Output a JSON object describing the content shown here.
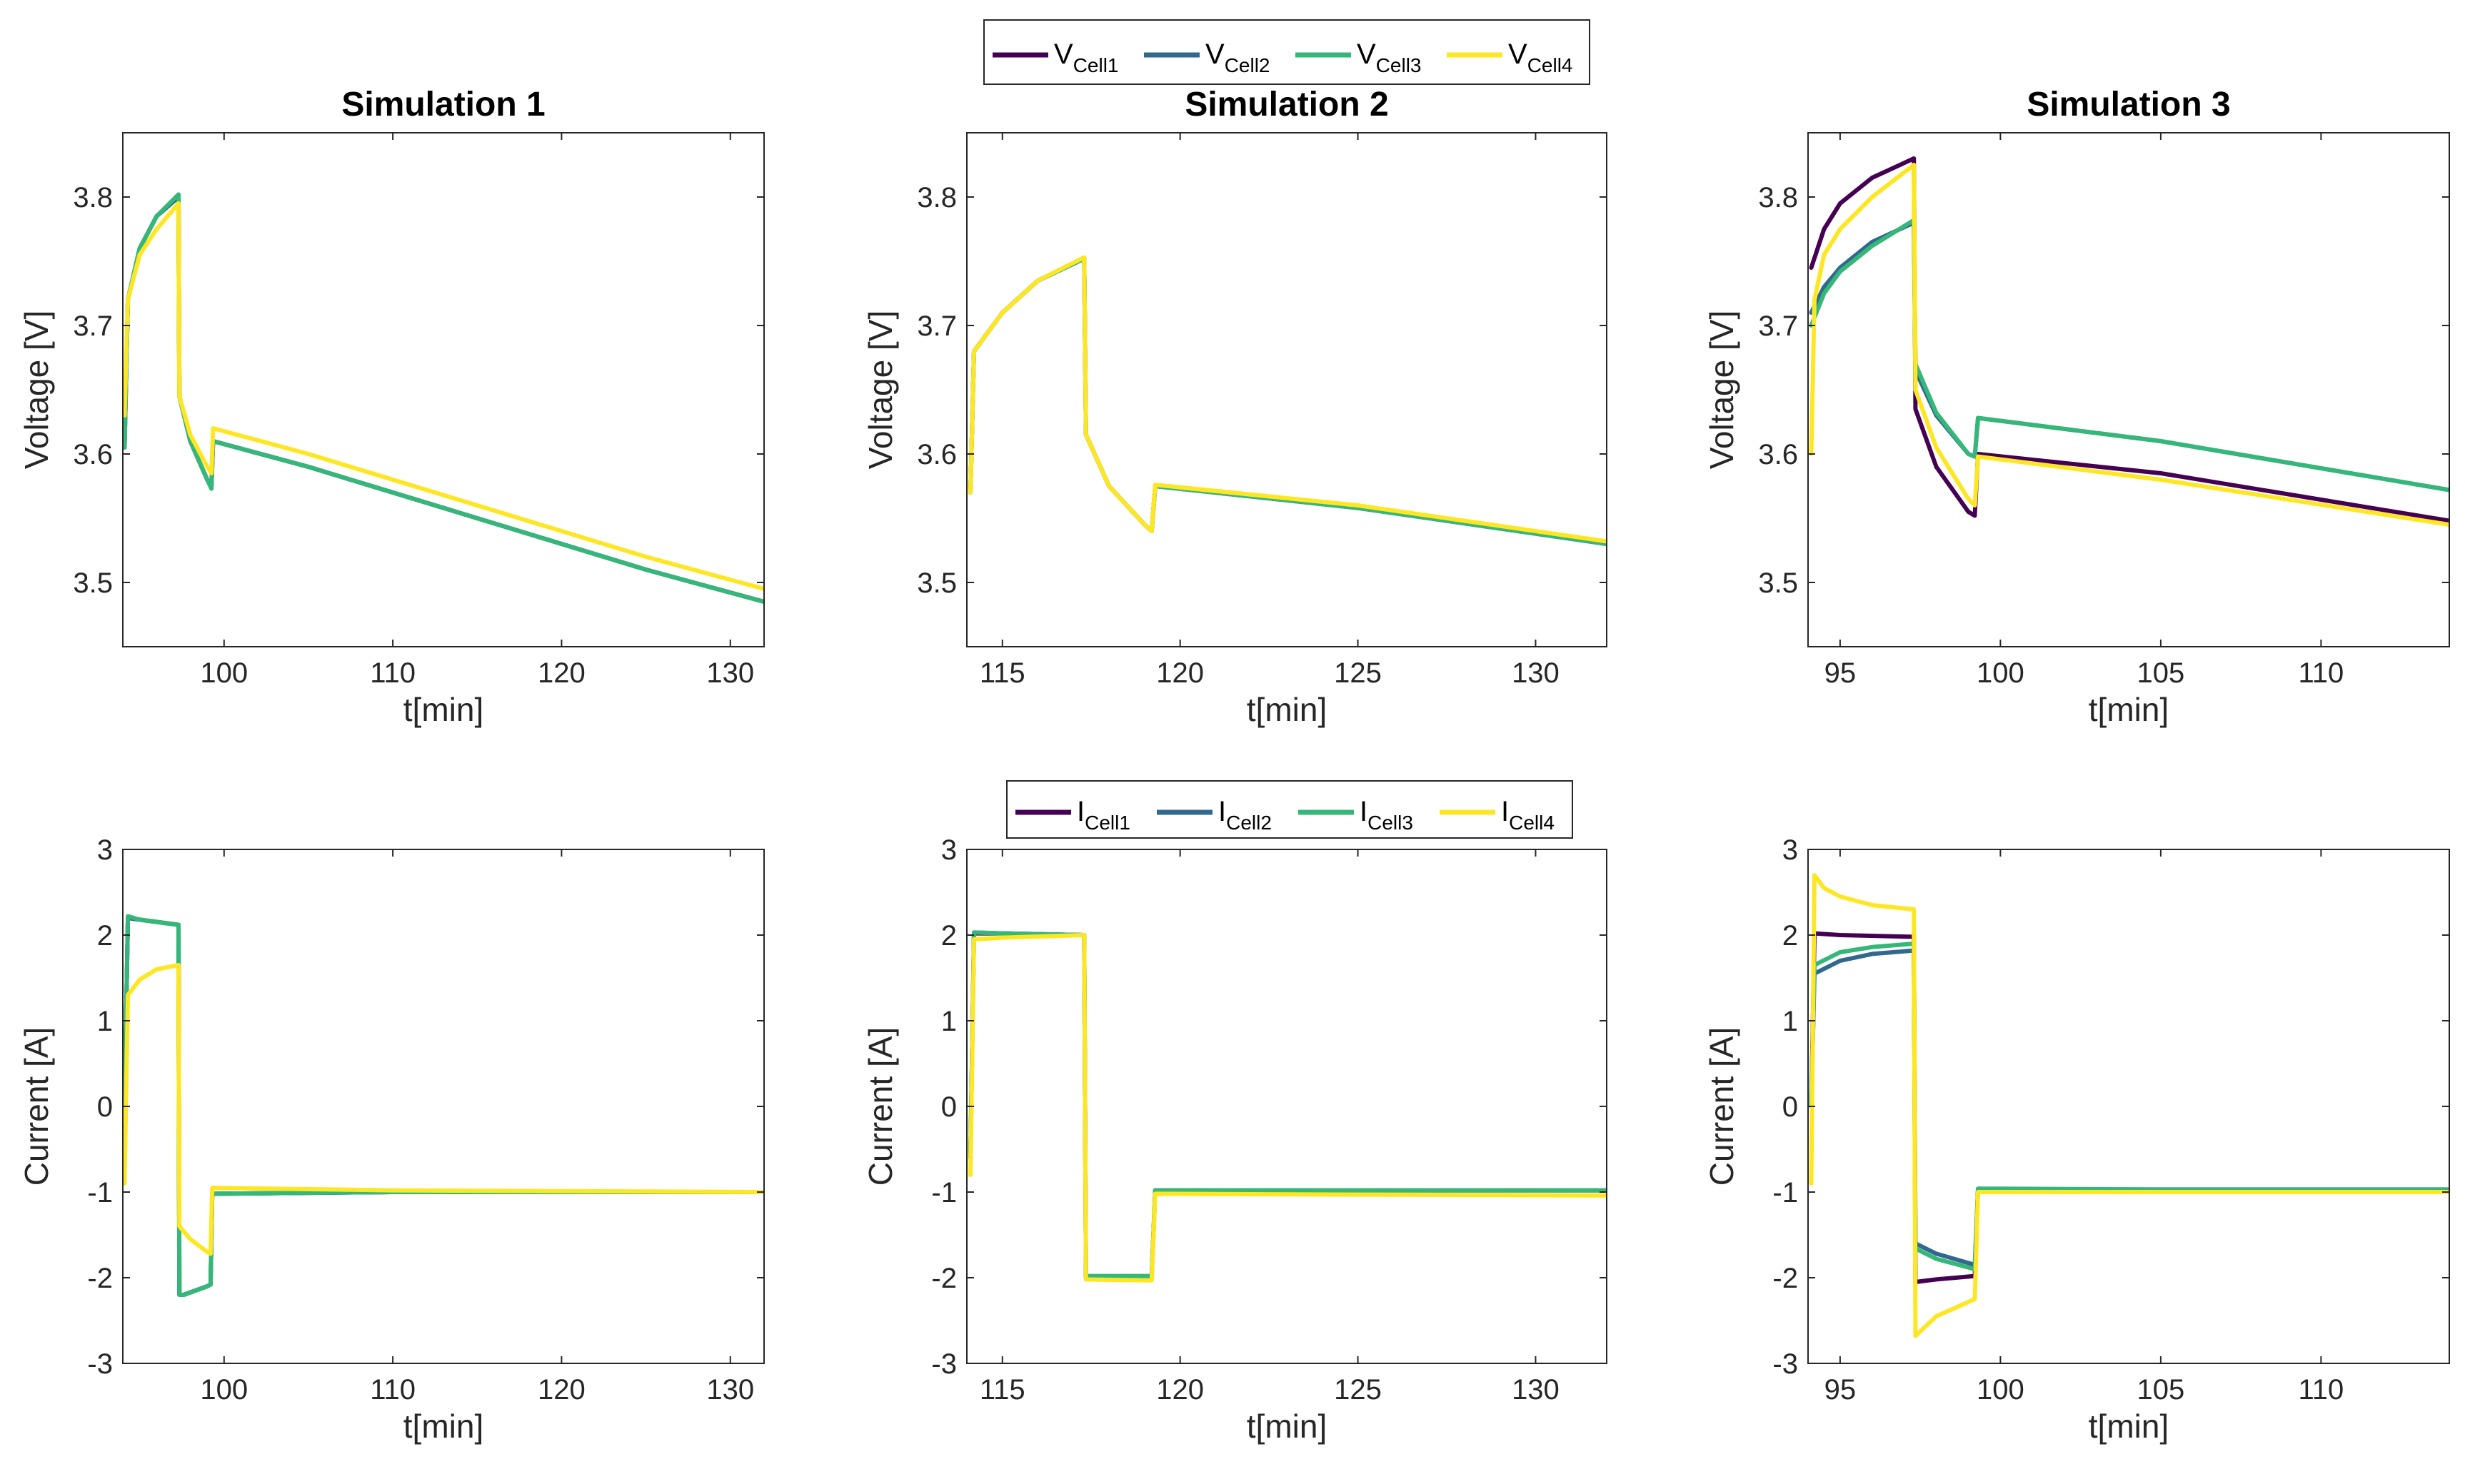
{
  "colors": {
    "Cell1": "#440154",
    "Cell2": "#31688e",
    "Cell3": "#35b779",
    "Cell4": "#fde725",
    "axis": "#262626"
  },
  "legends": [
    {
      "base": "V",
      "entries": [
        {
          "cell": "Cell1",
          "sub": "Cell1"
        },
        {
          "cell": "Cell2",
          "sub": "Cell2"
        },
        {
          "cell": "Cell3",
          "sub": "Cell3"
        },
        {
          "cell": "Cell4",
          "sub": "Cell4"
        }
      ]
    },
    {
      "base": "I",
      "entries": [
        {
          "cell": "Cell1",
          "sub": "Cell1"
        },
        {
          "cell": "Cell2",
          "sub": "Cell2"
        },
        {
          "cell": "Cell3",
          "sub": "Cell3"
        },
        {
          "cell": "Cell4",
          "sub": "Cell4"
        }
      ]
    }
  ],
  "chart_data": [
    {
      "type": "line",
      "title": "Simulation 1",
      "xlabel": "t[min]",
      "ylabel": "Voltage [V]",
      "xlim": [
        94,
        132
      ],
      "ylim": [
        3.45,
        3.85
      ],
      "xticks": [
        100,
        110,
        120,
        130
      ],
      "yticks": [
        3.5,
        3.6,
        3.7,
        3.8
      ],
      "xtick_labels": [
        "100",
        "110",
        "120",
        "130"
      ],
      "ytick_labels": [
        "3.5",
        "3.6",
        "3.7",
        "3.8"
      ],
      "series": [
        {
          "name": "VCell1",
          "cell": "Cell1",
          "x": [
            94.1,
            94.3,
            95,
            96,
            97.3,
            97.35,
            98,
            99,
            99.25,
            99.35,
            105,
            115,
            125,
            132
          ],
          "y": [
            3.605,
            3.72,
            3.76,
            3.785,
            3.8,
            3.645,
            3.61,
            3.58,
            3.575,
            3.61,
            3.59,
            3.55,
            3.51,
            3.485
          ]
        },
        {
          "name": "VCell2",
          "cell": "Cell2",
          "x": [
            94.1,
            94.3,
            95,
            96,
            97.3,
            97.35,
            98,
            99,
            99.25,
            99.35,
            105,
            115,
            125,
            132
          ],
          "y": [
            3.605,
            3.72,
            3.76,
            3.785,
            3.8,
            3.645,
            3.61,
            3.58,
            3.575,
            3.61,
            3.59,
            3.55,
            3.51,
            3.485
          ]
        },
        {
          "name": "VCell3",
          "cell": "Cell3",
          "x": [
            94.1,
            94.3,
            95,
            96,
            97.3,
            97.35,
            98,
            99,
            99.25,
            99.35,
            105,
            115,
            125,
            132
          ],
          "y": [
            3.605,
            3.72,
            3.76,
            3.785,
            3.802,
            3.645,
            3.61,
            3.58,
            3.573,
            3.61,
            3.59,
            3.55,
            3.51,
            3.485
          ]
        },
        {
          "name": "VCell4",
          "cell": "Cell4",
          "x": [
            94.1,
            94.3,
            95,
            96,
            97.3,
            97.35,
            98,
            99,
            99.25,
            99.35,
            105,
            115,
            125,
            132
          ],
          "y": [
            3.63,
            3.72,
            3.755,
            3.775,
            3.795,
            3.645,
            3.615,
            3.59,
            3.585,
            3.62,
            3.6,
            3.56,
            3.52,
            3.495
          ]
        }
      ]
    },
    {
      "type": "line",
      "title": "Simulation 2",
      "xlabel": "t[min]",
      "ylabel": "Voltage [V]",
      "xlim": [
        114,
        132
      ],
      "ylim": [
        3.45,
        3.85
      ],
      "xticks": [
        115,
        120,
        125,
        130
      ],
      "yticks": [
        3.5,
        3.6,
        3.7,
        3.8
      ],
      "xtick_labels": [
        "115",
        "120",
        "125",
        "130"
      ],
      "ytick_labels": [
        "3.5",
        "3.6",
        "3.7",
        "3.8"
      ],
      "series": [
        {
          "name": "VCell1",
          "cell": "Cell1",
          "x": [
            114.1,
            114.2,
            115,
            116,
            117.3,
            117.35,
            118,
            119,
            119.2,
            119.3,
            125,
            132
          ],
          "y": [
            3.57,
            3.68,
            3.71,
            3.735,
            3.752,
            3.615,
            3.575,
            3.545,
            3.54,
            3.575,
            3.558,
            3.53
          ]
        },
        {
          "name": "VCell2",
          "cell": "Cell2",
          "x": [
            114.1,
            114.2,
            115,
            116,
            117.3,
            117.35,
            118,
            119,
            119.2,
            119.3,
            125,
            132
          ],
          "y": [
            3.57,
            3.68,
            3.71,
            3.735,
            3.752,
            3.615,
            3.575,
            3.545,
            3.54,
            3.575,
            3.558,
            3.53
          ]
        },
        {
          "name": "VCell3",
          "cell": "Cell3",
          "x": [
            114.1,
            114.2,
            115,
            116,
            117.3,
            117.35,
            118,
            119,
            119.2,
            119.3,
            125,
            132
          ],
          "y": [
            3.57,
            3.68,
            3.71,
            3.735,
            3.752,
            3.615,
            3.575,
            3.545,
            3.54,
            3.575,
            3.558,
            3.53
          ]
        },
        {
          "name": "VCell4",
          "cell": "Cell4",
          "x": [
            114.1,
            114.2,
            115,
            116,
            117.3,
            117.35,
            118,
            119,
            119.2,
            119.3,
            125,
            132
          ],
          "y": [
            3.57,
            3.68,
            3.71,
            3.735,
            3.753,
            3.615,
            3.575,
            3.545,
            3.54,
            3.576,
            3.56,
            3.532
          ]
        }
      ]
    },
    {
      "type": "line",
      "title": "Simulation 3",
      "xlabel": "t[min]",
      "ylabel": "Voltage [V]",
      "xlim": [
        94,
        114
      ],
      "ylim": [
        3.45,
        3.85
      ],
      "xticks": [
        95,
        100,
        105,
        110
      ],
      "yticks": [
        3.5,
        3.6,
        3.7,
        3.8
      ],
      "xtick_labels": [
        "95",
        "100",
        "105",
        "110"
      ],
      "ytick_labels": [
        "3.5",
        "3.6",
        "3.7",
        "3.8"
      ],
      "series": [
        {
          "name": "VCell1",
          "cell": "Cell1",
          "x": [
            94.1,
            94.5,
            95,
            96,
            97.3,
            97.35,
            98,
            99,
            99.2,
            99.3,
            105,
            114
          ],
          "y": [
            3.745,
            3.775,
            3.795,
            3.815,
            3.83,
            3.635,
            3.59,
            3.555,
            3.552,
            3.6,
            3.585,
            3.548
          ]
        },
        {
          "name": "VCell2",
          "cell": "Cell2",
          "x": [
            94.1,
            94.5,
            95,
            96,
            97.3,
            97.35,
            98,
            99,
            99.2,
            99.3,
            105,
            114
          ],
          "y": [
            3.71,
            3.73,
            3.745,
            3.765,
            3.78,
            3.665,
            3.63,
            3.6,
            3.598,
            3.628,
            3.61,
            3.572
          ]
        },
        {
          "name": "VCell3",
          "cell": "Cell3",
          "x": [
            94.1,
            94.5,
            95,
            96,
            97.3,
            97.35,
            98,
            99,
            99.2,
            99.3,
            105,
            114
          ],
          "y": [
            3.7,
            3.725,
            3.742,
            3.762,
            3.782,
            3.67,
            3.632,
            3.6,
            3.598,
            3.628,
            3.61,
            3.572
          ]
        },
        {
          "name": "VCell4",
          "cell": "Cell4",
          "x": [
            94.1,
            94.2,
            94.5,
            95,
            96,
            97.3,
            97.35,
            98,
            99,
            99.2,
            99.3,
            105,
            114
          ],
          "y": [
            3.6,
            3.72,
            3.755,
            3.775,
            3.8,
            3.825,
            3.65,
            3.605,
            3.565,
            3.56,
            3.598,
            3.58,
            3.545
          ]
        }
      ]
    },
    {
      "type": "line",
      "title": "",
      "xlabel": "t[min]",
      "ylabel": "Current [A]",
      "xlim": [
        94,
        132
      ],
      "ylim": [
        -3,
        3
      ],
      "xticks": [
        100,
        110,
        120,
        130
      ],
      "yticks": [
        -3,
        -2,
        -1,
        0,
        1,
        2,
        3
      ],
      "xtick_labels": [
        "100",
        "110",
        "120",
        "130"
      ],
      "ytick_labels": [
        "-3",
        "-2",
        "-1",
        "0",
        "1",
        "2",
        "3"
      ],
      "series": [
        {
          "name": "ICell1",
          "cell": "Cell1",
          "x": [
            94.1,
            94.3,
            95,
            97.3,
            97.35,
            97.6,
            99,
            99.2,
            99.3,
            110,
            132
          ],
          "y": [
            0,
            2.2,
            2.18,
            2.12,
            -2.2,
            -2.2,
            -2.1,
            -2.08,
            -1.02,
            -1.0,
            -1.0
          ]
        },
        {
          "name": "ICell2",
          "cell": "Cell2",
          "x": [
            94.1,
            94.3,
            95,
            97.3,
            97.35,
            97.6,
            99,
            99.2,
            99.3,
            110,
            132
          ],
          "y": [
            0,
            2.2,
            2.18,
            2.12,
            -2.2,
            -2.2,
            -2.1,
            -2.08,
            -1.02,
            -1.0,
            -1.0
          ]
        },
        {
          "name": "ICell3",
          "cell": "Cell3",
          "x": [
            94.1,
            94.3,
            95,
            97.3,
            97.35,
            97.6,
            99,
            99.2,
            99.3,
            110,
            132
          ],
          "y": [
            0,
            2.22,
            2.18,
            2.12,
            -2.2,
            -2.2,
            -2.1,
            -2.08,
            -1.02,
            -1.0,
            -1.0
          ]
        },
        {
          "name": "ICell4",
          "cell": "Cell4",
          "x": [
            94.1,
            94.3,
            95,
            96,
            97.3,
            97.35,
            98,
            99,
            99.2,
            99.3,
            110,
            132
          ],
          "y": [
            -0.9,
            1.3,
            1.48,
            1.6,
            1.65,
            -1.4,
            -1.55,
            -1.7,
            -1.72,
            -0.95,
            -0.98,
            -1.0
          ]
        }
      ]
    },
    {
      "type": "line",
      "title": "",
      "xlabel": "t[min]",
      "ylabel": "Current [A]",
      "xlim": [
        114,
        132
      ],
      "ylim": [
        -3,
        3
      ],
      "xticks": [
        115,
        120,
        125,
        130
      ],
      "yticks": [
        -3,
        -2,
        -1,
        0,
        1,
        2,
        3
      ],
      "xtick_labels": [
        "115",
        "120",
        "125",
        "130"
      ],
      "ytick_labels": [
        "-3",
        "-2",
        "-1",
        "0",
        "1",
        "2",
        "3"
      ],
      "series": [
        {
          "name": "ICell1",
          "cell": "Cell1",
          "x": [
            114.1,
            114.2,
            115,
            117.3,
            117.35,
            119,
            119.2,
            119.3,
            125,
            132
          ],
          "y": [
            -0.6,
            2.02,
            2.02,
            2.0,
            -2.0,
            -2.0,
            -2.0,
            -0.98,
            -0.98,
            -0.98
          ]
        },
        {
          "name": "ICell2",
          "cell": "Cell2",
          "x": [
            114.1,
            114.2,
            115,
            117.3,
            117.35,
            119,
            119.2,
            119.3,
            125,
            132
          ],
          "y": [
            -0.6,
            2.03,
            2.02,
            2.0,
            -1.99,
            -1.99,
            -1.99,
            -0.98,
            -0.98,
            -0.98
          ]
        },
        {
          "name": "ICell3",
          "cell": "Cell3",
          "x": [
            114.1,
            114.2,
            115,
            117.3,
            117.35,
            119,
            119.2,
            119.3,
            125,
            132
          ],
          "y": [
            -0.6,
            2.03,
            2.02,
            2.0,
            -1.98,
            -1.98,
            -1.98,
            -0.98,
            -0.98,
            -0.98
          ]
        },
        {
          "name": "ICell4",
          "cell": "Cell4",
          "x": [
            114.1,
            114.2,
            115,
            117.3,
            117.35,
            119,
            119.2,
            119.3,
            125,
            132
          ],
          "y": [
            -0.8,
            1.95,
            1.97,
            2.0,
            -2.02,
            -2.03,
            -2.03,
            -1.02,
            -1.03,
            -1.04
          ]
        }
      ]
    },
    {
      "type": "line",
      "title": "",
      "xlabel": "t[min]",
      "ylabel": "Current [A]",
      "xlim": [
        94,
        114
      ],
      "ylim": [
        -3,
        3
      ],
      "xticks": [
        95,
        100,
        105,
        110
      ],
      "yticks": [
        -3,
        -2,
        -1,
        0,
        1,
        2,
        3
      ],
      "xtick_labels": [
        "95",
        "100",
        "105",
        "110"
      ],
      "ytick_labels": [
        "-3",
        "-2",
        "-1",
        "0",
        "1",
        "2",
        "3"
      ],
      "series": [
        {
          "name": "ICell1",
          "cell": "Cell1",
          "x": [
            94.1,
            94.2,
            95,
            97.3,
            97.35,
            98,
            99.2,
            99.3,
            105,
            114
          ],
          "y": [
            0,
            2.02,
            2.0,
            1.98,
            -2.05,
            -2.02,
            -1.98,
            -0.98,
            -0.98,
            -0.98
          ]
        },
        {
          "name": "ICell2",
          "cell": "Cell2",
          "x": [
            94.1,
            94.2,
            95,
            96,
            97.3,
            97.35,
            98,
            99.2,
            99.3,
            105,
            114
          ],
          "y": [
            0,
            1.55,
            1.7,
            1.78,
            1.82,
            -1.6,
            -1.72,
            -1.85,
            -0.97,
            -0.97,
            -0.97
          ]
        },
        {
          "name": "ICell3",
          "cell": "Cell3",
          "x": [
            94.1,
            94.2,
            95,
            96,
            97.3,
            97.35,
            98,
            99.2,
            99.3,
            105,
            114
          ],
          "y": [
            0,
            1.65,
            1.8,
            1.86,
            1.9,
            -1.66,
            -1.78,
            -1.9,
            -0.96,
            -0.97,
            -0.97
          ]
        },
        {
          "name": "ICell4",
          "cell": "Cell4",
          "x": [
            94.1,
            94.2,
            94.5,
            95,
            96,
            97.3,
            97.35,
            98,
            99.2,
            99.3,
            105,
            114
          ],
          "y": [
            -0.9,
            2.7,
            2.55,
            2.45,
            2.35,
            2.3,
            -2.68,
            -2.45,
            -2.25,
            -1.0,
            -1.0,
            -1.0
          ]
        }
      ]
    }
  ]
}
